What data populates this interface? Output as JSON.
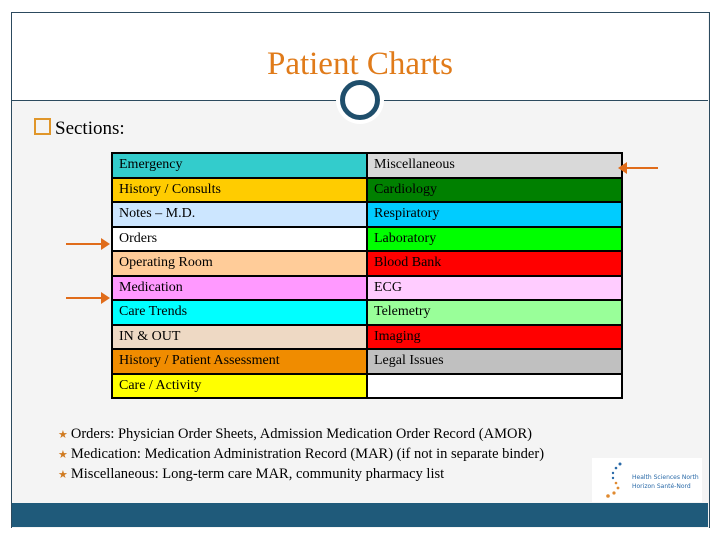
{
  "title": "Patient Charts",
  "sections_label": "Sections:",
  "table": [
    {
      "left": "Emergency",
      "left_color": "#33cccc",
      "right": "Miscellaneous",
      "right_color": "#d9d9d9"
    },
    {
      "left": "History / Consults",
      "left_color": "#ffcc00",
      "right": "Cardiology",
      "right_color": "#008000"
    },
    {
      "left": "Notes – M.D.",
      "left_color": "#cce6ff",
      "right": "Respiratory",
      "right_color": "#00ccff"
    },
    {
      "left": "Orders",
      "left_color": "#ffffff",
      "right": "Laboratory",
      "right_color": "#00ff00"
    },
    {
      "left": "Operating Room",
      "left_color": "#ffcc99",
      "right": "Blood Bank",
      "right_color": "#ff0000"
    },
    {
      "left": "Medication",
      "left_color": "#ff99ff",
      "right": "ECG",
      "right_color": "#ffccff"
    },
    {
      "left": "Care Trends",
      "left_color": "#00ffff",
      "right": "Telemetry",
      "right_color": "#99ff99"
    },
    {
      "left": "IN & OUT",
      "left_color": "#eed9c4",
      "right": "Imaging",
      "right_color": "#ff0000"
    },
    {
      "left": "History / Patient Assessment",
      "left_color": "#f08c00",
      "right": "Legal Issues",
      "right_color": "#c0c0c0"
    },
    {
      "left": "Care / Activity",
      "left_color": "#ffff00",
      "right": "",
      "right_color": "#ffffff"
    }
  ],
  "notes": [
    "Orders: Physician Order Sheets, Admission Medication Order Record (AMOR)",
    "Medication: Medication Administration Record (MAR) (if not in separate binder)",
    "Miscellaneous: Long-term care MAR, community pharmacy list"
  ],
  "logo": {
    "line1": "Health Sciences North",
    "line2": "Horizon Santé-Nord"
  },
  "colors": {
    "accent": "#e07b1a",
    "band": "#1f5a7a"
  }
}
